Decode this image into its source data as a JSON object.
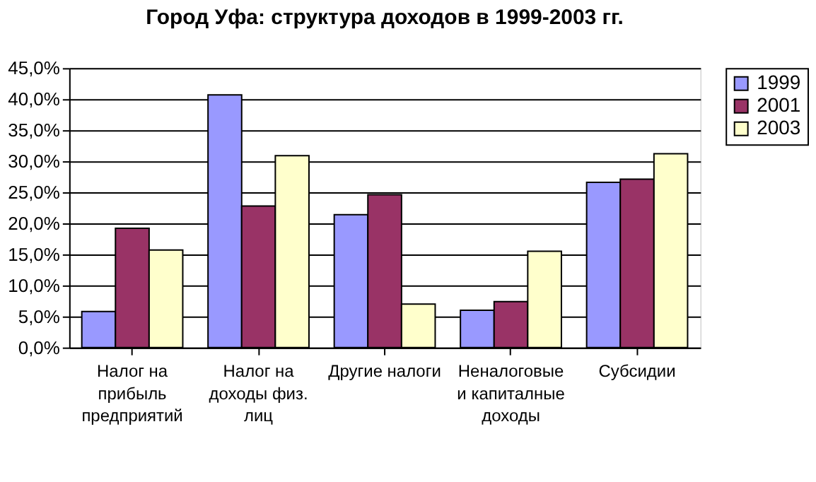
{
  "chart_data": {
    "type": "bar",
    "title": "Город Уфа: структура доходов в 1999-2003 гг.",
    "categories": [
      "Налог на\nприбыль\nпредприятий",
      "Налог на\nдоходы физ.\nлиц",
      "Другие налоги",
      "Неналоговые\nи капиталные\nдоходы",
      "Субсидии"
    ],
    "series": [
      {
        "name": "1999",
        "color": "#9999ff",
        "values": [
          5.8,
          40.7,
          21.4,
          6.0,
          26.6
        ]
      },
      {
        "name": "2001",
        "color": "#993366",
        "values": [
          19.2,
          22.8,
          24.6,
          7.4,
          27.1
        ]
      },
      {
        "name": "2003",
        "color": "#ffffcc",
        "values": [
          15.7,
          30.9,
          7.0,
          15.5,
          31.2
        ]
      }
    ],
    "ylim": [
      0,
      45
    ],
    "yticks": [
      {
        "value": 0,
        "label": "0,0%"
      },
      {
        "value": 5,
        "label": "5,0%"
      },
      {
        "value": 10,
        "label": "10,0%"
      },
      {
        "value": 15,
        "label": "15,0%"
      },
      {
        "value": 20,
        "label": "20,0%"
      },
      {
        "value": 25,
        "label": "25,0%"
      },
      {
        "value": 30,
        "label": "30,0%"
      },
      {
        "value": 35,
        "label": "35,0%"
      },
      {
        "value": 40,
        "label": "40,0%"
      },
      {
        "value": 45,
        "label": "45,0%"
      }
    ],
    "grid": "y",
    "legend": "right"
  }
}
